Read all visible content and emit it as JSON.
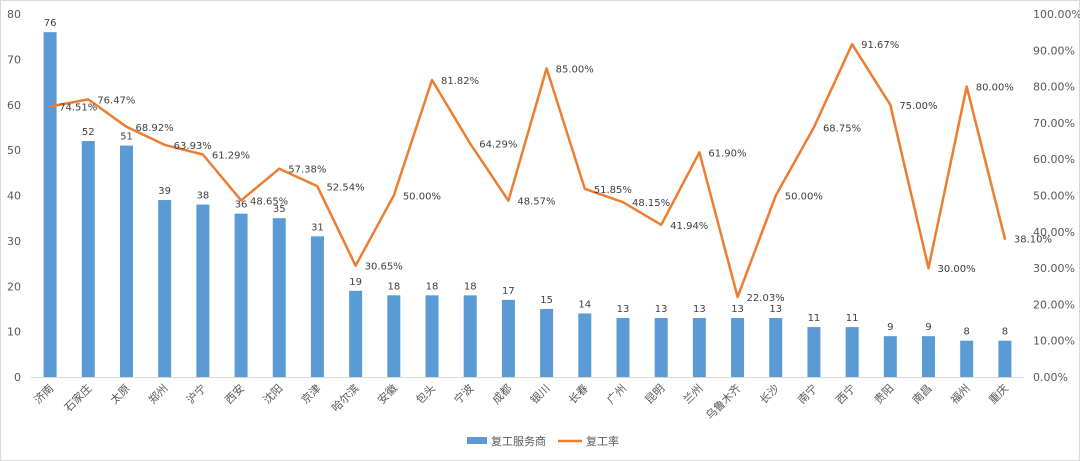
{
  "chart_data": {
    "type": "bar",
    "categories": [
      "济南",
      "石家庄",
      "太原",
      "郑州",
      "沪宁",
      "西安",
      "沈阳",
      "京津",
      "哈尔滨",
      "安徽",
      "包头",
      "宁波",
      "成都",
      "银川",
      "长春",
      "广州",
      "昆明",
      "兰州",
      "乌鲁木齐",
      "长沙",
      "南宁",
      "西宁",
      "贵阳",
      "南昌",
      "福州",
      "重庆"
    ],
    "series": [
      {
        "name": "复工服务商",
        "type": "bar",
        "axis": "left",
        "values": [
          76,
          52,
          51,
          39,
          38,
          36,
          35,
          31,
          19,
          18,
          18,
          18,
          17,
          15,
          14,
          13,
          13,
          13,
          13,
          13,
          11,
          11,
          9,
          9,
          8,
          8
        ],
        "labels": [
          "76",
          "52",
          "51",
          "39",
          "38",
          "36",
          "35",
          "31",
          "19",
          "18",
          "18",
          "18",
          "17",
          "15",
          "14",
          "13",
          "13",
          "13",
          "13",
          "13",
          "11",
          "11",
          "9",
          "9",
          "8",
          "8"
        ]
      },
      {
        "name": "复工率",
        "type": "line",
        "axis": "right",
        "values": [
          74.51,
          76.47,
          68.92,
          63.93,
          61.29,
          48.65,
          57.38,
          52.54,
          30.65,
          50.0,
          81.82,
          64.29,
          48.57,
          85.0,
          51.85,
          48.15,
          41.94,
          61.9,
          22.03,
          50.0,
          68.75,
          91.67,
          75.0,
          30.0,
          80.0,
          38.1
        ],
        "labels": [
          "74.51%",
          "76.47%",
          "68.92%",
          "63.93%",
          "61.29%",
          "48.65%",
          "57.38%",
          "52.54%",
          "30.65%",
          "50.00%",
          "81.82%",
          "64.29%",
          "48.57%",
          "85.00%",
          "51.85%",
          "48.15%",
          "41.94%",
          "61.90%",
          "22.03%",
          "50.00%",
          "68.75%",
          "91.67%",
          "75.00%",
          "30.00%",
          "80.00%",
          "38.10%"
        ]
      }
    ],
    "y_left": {
      "ylim": [
        0,
        80
      ],
      "ticks": [
        "0",
        "10",
        "20",
        "30",
        "40",
        "50",
        "60",
        "70",
        "80"
      ]
    },
    "y_right": {
      "ylim": [
        0,
        100
      ],
      "ticks": [
        "0.00%",
        "10.00%",
        "20.00%",
        "30.00%",
        "40.00%",
        "50.00%",
        "60.00%",
        "70.00%",
        "80.00%",
        "90.00%",
        "100.00%"
      ]
    },
    "grid": false,
    "legend_position": "bottom",
    "colors": {
      "bar": "#5b9bd5",
      "line": "#ed7d31",
      "axis": "#d9d9d9"
    }
  }
}
